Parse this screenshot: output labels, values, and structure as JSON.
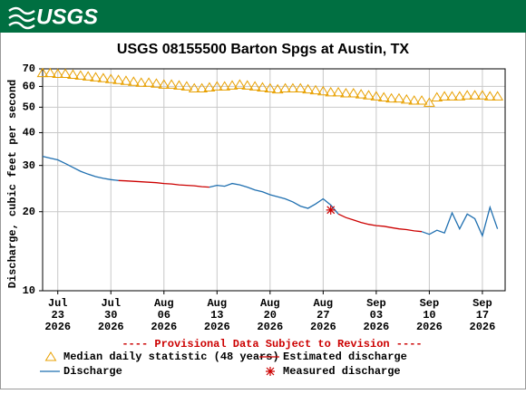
{
  "header": {
    "logo": "USGS"
  },
  "chart_data": {
    "type": "line",
    "title": "USGS 08155500 Barton Spgs at Austin, TX",
    "y_label": "Discharge, cubic feet per second",
    "note": "---- Provisional Data Subject to Revision ----",
    "log_y": true,
    "grid": true,
    "ylim": [
      10,
      70
    ],
    "yticks": [
      10,
      20,
      30,
      40,
      50,
      60,
      70
    ],
    "xlim": [
      "2026-07-21",
      "2026-09-20"
    ],
    "xticks": [
      {
        "value": "2026-07-23",
        "label": [
          "Jul",
          "23",
          "2026"
        ]
      },
      {
        "value": "2026-07-30",
        "label": [
          "Jul",
          "30",
          "2026"
        ]
      },
      {
        "value": "2026-08-06",
        "label": [
          "Aug",
          "06",
          "2026"
        ]
      },
      {
        "value": "2026-08-13",
        "label": [
          "Aug",
          "13",
          "2026"
        ]
      },
      {
        "value": "2026-08-20",
        "label": [
          "Aug",
          "20",
          "2026"
        ]
      },
      {
        "value": "2026-08-27",
        "label": [
          "Aug",
          "27",
          "2026"
        ]
      },
      {
        "value": "2026-09-03",
        "label": [
          "Sep",
          "03",
          "2026"
        ]
      },
      {
        "value": "2026-09-10",
        "label": [
          "Sep",
          "10",
          "2026"
        ]
      },
      {
        "value": "2026-09-17",
        "label": [
          "Sep",
          "17",
          "2026"
        ]
      }
    ],
    "x": [
      "2026-07-21",
      "2026-07-22",
      "2026-07-23",
      "2026-07-24",
      "2026-07-25",
      "2026-07-26",
      "2026-07-27",
      "2026-07-28",
      "2026-07-29",
      "2026-07-30",
      "2026-07-31",
      "2026-08-01",
      "2026-08-02",
      "2026-08-03",
      "2026-08-04",
      "2026-08-05",
      "2026-08-06",
      "2026-08-07",
      "2026-08-08",
      "2026-08-09",
      "2026-08-10",
      "2026-08-11",
      "2026-08-12",
      "2026-08-13",
      "2026-08-14",
      "2026-08-15",
      "2026-08-16",
      "2026-08-17",
      "2026-08-18",
      "2026-08-19",
      "2026-08-20",
      "2026-08-21",
      "2026-08-22",
      "2026-08-23",
      "2026-08-24",
      "2026-08-25",
      "2026-08-26",
      "2026-08-27",
      "2026-08-28",
      "2026-08-29",
      "2026-08-30",
      "2026-08-31",
      "2026-09-01",
      "2026-09-02",
      "2026-09-03",
      "2026-09-04",
      "2026-09-05",
      "2026-09-06",
      "2026-09-07",
      "2026-09-08",
      "2026-09-09",
      "2026-09-10",
      "2026-09-11",
      "2026-09-12",
      "2026-09-13",
      "2026-09-14",
      "2026-09-15",
      "2026-09-16",
      "2026-09-17",
      "2026-09-18",
      "2026-09-19"
    ],
    "series": [
      {
        "name": "Median daily statistic (48 years)",
        "kind": "scatter",
        "marker": "triangle",
        "color": "#e8a000",
        "values": [
          67.5,
          67.5,
          67,
          67,
          66.5,
          66,
          65.5,
          65,
          64.5,
          64,
          63.5,
          63,
          62.5,
          62,
          62,
          61.5,
          61,
          61,
          60.5,
          60,
          59,
          59,
          59.5,
          60,
          60,
          60.5,
          61,
          60.5,
          60,
          59.5,
          59,
          58.5,
          59,
          59,
          59,
          58.5,
          58,
          57.5,
          57,
          57,
          56.5,
          56.5,
          56,
          55.5,
          55,
          54.5,
          54,
          54,
          53.5,
          53,
          53,
          52,
          54.5,
          55,
          55,
          55,
          55.5,
          55.5,
          55.5,
          55,
          55
        ]
      },
      {
        "name": "Estimated discharge",
        "kind": "line",
        "color": "#cc0000",
        "values": [
          null,
          null,
          null,
          null,
          null,
          null,
          null,
          null,
          null,
          null,
          26.3,
          26.2,
          26.1,
          26,
          25.9,
          25.8,
          25.6,
          25.5,
          25.3,
          25.2,
          25.1,
          24.9,
          24.8,
          null,
          null,
          null,
          null,
          null,
          null,
          null,
          null,
          null,
          null,
          null,
          null,
          null,
          null,
          null,
          null,
          19.6,
          19,
          18.6,
          18.2,
          17.9,
          17.7,
          17.6,
          17.4,
          17.2,
          17.1,
          16.9,
          16.8,
          null,
          null,
          null,
          null,
          null,
          null,
          null,
          null,
          null,
          null
        ]
      },
      {
        "name": "Discharge",
        "kind": "line",
        "color": "#1f6fb0",
        "values": [
          32.5,
          32,
          31.5,
          30.5,
          29.5,
          28.5,
          27.8,
          27.2,
          26.8,
          26.5,
          26.3,
          null,
          null,
          null,
          null,
          null,
          null,
          null,
          null,
          null,
          null,
          null,
          24.8,
          25.2,
          25,
          25.6,
          25.3,
          24.8,
          24.2,
          23.8,
          23.2,
          22.8,
          22.4,
          21.8,
          21,
          20.6,
          21.4,
          22.4,
          21.2,
          19.6,
          null,
          null,
          null,
          null,
          null,
          null,
          null,
          null,
          null,
          null,
          16.8,
          16.4,
          17,
          16.6,
          19.8,
          17.2,
          19.6,
          18.8,
          16.2,
          20.8,
          17.2
        ]
      },
      {
        "name": "Measured discharge",
        "kind": "scatter",
        "marker": "asterisk",
        "color": "#cc0000",
        "x": [
          "2026-08-28"
        ],
        "values": [
          20.3
        ]
      }
    ]
  }
}
